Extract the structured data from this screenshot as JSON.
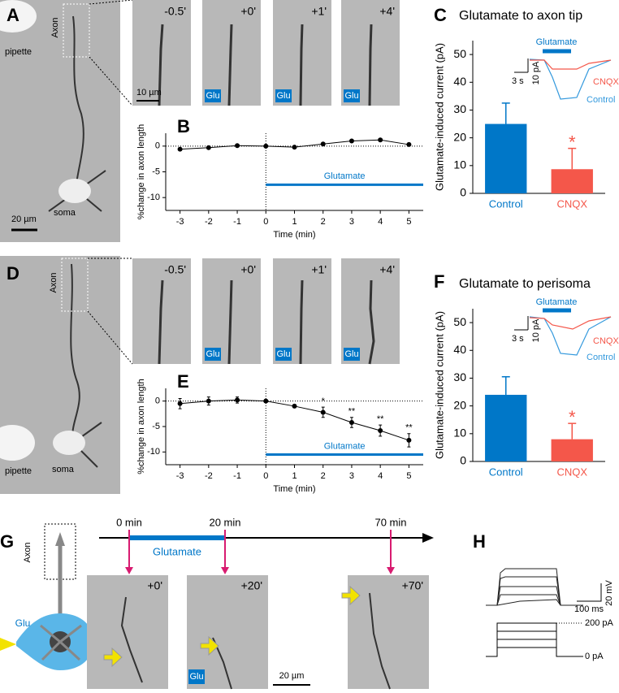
{
  "chart_data": [
    {
      "type": "line",
      "x": [
        -3,
        -2,
        -1,
        0,
        1,
        2,
        3,
        4,
        5
      ],
      "values": [
        -0.6,
        -0.3,
        0.1,
        0,
        -0.2,
        0.4,
        1.0,
        1.2,
        0.3
      ],
      "xlim": [
        -3.5,
        5.5
      ],
      "ylim": [
        -12.5,
        2.5
      ],
      "xticks": [
        -3,
        -2,
        -1,
        0,
        1,
        2,
        3,
        4,
        5
      ],
      "yticks": [
        0,
        -5,
        -10
      ],
      "xlabel": "Time (min)",
      "ylabel": "%change in axon length",
      "color": "#000000",
      "ref_x": 0,
      "ref_y": 0,
      "span": {
        "text": "Glutamate",
        "x": [
          0,
          5.5
        ],
        "y": -7.5,
        "color": "#0077c8"
      }
    },
    {
      "type": "bar",
      "title": "Glutamate to axon tip",
      "categories": [
        "Control",
        "CNQX"
      ],
      "values": [
        25,
        8.7
      ],
      "errors": [
        7.5,
        7.5
      ],
      "colors": [
        "#0077c8",
        "#f4574a"
      ],
      "ylim": [
        0,
        55
      ],
      "yticks": [
        0,
        10,
        20,
        30,
        40,
        50
      ],
      "ylabel": "Glutamate-induced current (pA)",
      "significance": {
        "category": "CNQX",
        "text": "*"
      },
      "inset": {
        "stimulus": "Glutamate",
        "traces": [
          "CNQX",
          "Control"
        ],
        "scale_x": "3 s",
        "scale_y": "10 pA"
      }
    },
    {
      "type": "line",
      "x": [
        -3,
        -2,
        -1,
        0,
        1,
        2,
        3,
        4,
        5
      ],
      "values": [
        -0.5,
        0,
        0.2,
        0,
        -1,
        -2.2,
        -4.2,
        -5.8,
        -7.7
      ],
      "errors": [
        1,
        0.8,
        0.6,
        0.3,
        0.3,
        1,
        1,
        1.1,
        1.3
      ],
      "xlim": [
        -3.5,
        5.5
      ],
      "ylim": [
        -12.5,
        2.5
      ],
      "xticks": [
        -3,
        -2,
        -1,
        0,
        1,
        2,
        3,
        4,
        5
      ],
      "yticks": [
        0,
        -5,
        -10
      ],
      "xlabel": "Time (min)",
      "ylabel": "%change in axon length",
      "color": "#000000",
      "ref_x": 0,
      "ref_y": 0,
      "span": {
        "text": "Glutamate",
        "x": [
          0,
          5.5
        ],
        "y": -10.5,
        "color": "#0077c8"
      },
      "annotations": [
        {
          "x": 2,
          "text": "*"
        },
        {
          "x": 3,
          "text": "**"
        },
        {
          "x": 4,
          "text": "**"
        },
        {
          "x": 5,
          "text": "**"
        }
      ]
    },
    {
      "type": "bar",
      "title": "Glutamate to perisoma",
      "categories": [
        "Control",
        "CNQX"
      ],
      "values": [
        24,
        8
      ],
      "errors": [
        6.5,
        5.7
      ],
      "colors": [
        "#0077c8",
        "#f4574a"
      ],
      "ylim": [
        0,
        55
      ],
      "yticks": [
        0,
        10,
        20,
        30,
        40,
        50
      ],
      "ylabel": "Glutamate-induced current (pA)",
      "significance": {
        "category": "CNQX",
        "text": "*"
      },
      "inset": {
        "stimulus": "Glutamate",
        "traces": [
          "CNQX",
          "Control"
        ],
        "scale_x": "3 s",
        "scale_y": "10 pA"
      }
    }
  ],
  "panel_letters": [
    "A",
    "B",
    "C",
    "D",
    "E",
    "F",
    "G",
    "H"
  ],
  "panel_a": {
    "labels": [
      "Axon",
      "pipette",
      "soma"
    ],
    "scale_bar": "20 µm",
    "frames": [
      "-0.5'",
      "+0'",
      "+1'",
      "+4'"
    ],
    "glu": [
      "Glu",
      "Glu",
      "Glu"
    ],
    "frame_scale": "10 µm"
  },
  "panel_d": {
    "labels": [
      "Axon",
      "pipette",
      "soma"
    ],
    "frames": [
      "-0.5'",
      "+0'",
      "+1'",
      "+4'"
    ],
    "glu": [
      "Glu",
      "Glu",
      "Glu"
    ]
  },
  "panel_g": {
    "times": [
      "0 min",
      "20 min",
      "70 min"
    ],
    "stimulus": "Glutamate",
    "axon": "Axon",
    "glu": [
      "Glu",
      "Glu"
    ],
    "frames": [
      "+0'",
      "+20'",
      "+70'"
    ],
    "scale_bar": "20 µm"
  },
  "panel_h": {
    "scale_y": "20 mV",
    "scale_x": "100 ms",
    "current_top": "200 pA",
    "current_bottom": "0 pA"
  }
}
